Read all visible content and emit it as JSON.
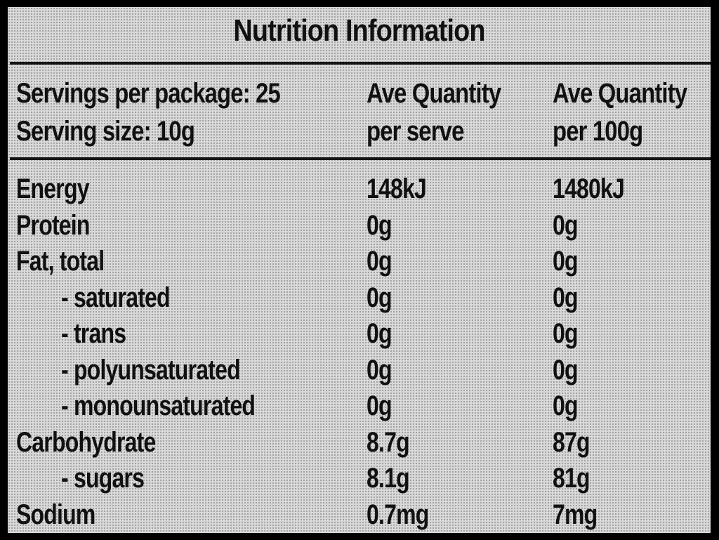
{
  "title": "Nutrition Information",
  "header": {
    "servings_per_package": "Servings per package: 25",
    "serving_size": "Serving size: 10g",
    "col_serve_line1": "Ave Quantity",
    "col_serve_line2": "per serve",
    "col_100g_line1": "Ave Quantity",
    "col_100g_line2": "per 100g"
  },
  "rows": [
    {
      "label": "Energy",
      "per_serve": "148kJ",
      "per_100g": "1480kJ",
      "indent": false
    },
    {
      "label": "Protein",
      "per_serve": "0g",
      "per_100g": "0g",
      "indent": false
    },
    {
      "label": "Fat, total",
      "per_serve": "0g",
      "per_100g": "0g",
      "indent": false
    },
    {
      "label": "- saturated",
      "per_serve": "0g",
      "per_100g": "0g",
      "indent": true
    },
    {
      "label": "- trans",
      "per_serve": "0g",
      "per_100g": "0g",
      "indent": true
    },
    {
      "label": "- polyunsaturated",
      "per_serve": "0g",
      "per_100g": "0g",
      "indent": true
    },
    {
      "label": "- monounsaturated",
      "per_serve": "0g",
      "per_100g": "0g",
      "indent": true
    },
    {
      "label": "Carbohydrate",
      "per_serve": "8.7g",
      "per_100g": "87g",
      "indent": false
    },
    {
      "label": "- sugars",
      "per_serve": "8.1g",
      "per_100g": "81g",
      "indent": true
    },
    {
      "label": "Sodium",
      "per_serve": "0.7mg",
      "per_100g": "7mg",
      "indent": false
    }
  ],
  "colors": {
    "text": "#111111",
    "background": "#d9d9d9",
    "frame": "#000000"
  }
}
